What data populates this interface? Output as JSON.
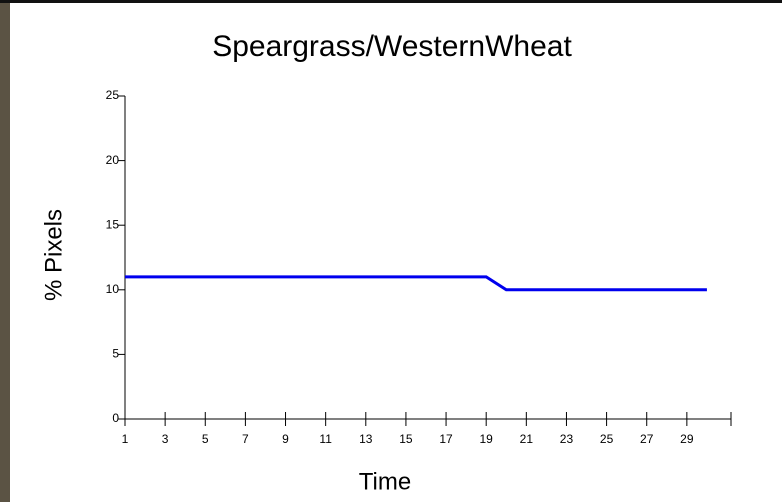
{
  "chart_data": {
    "type": "line",
    "title": "Speargrass/WesternWheat",
    "x_label": "Time",
    "y_label": "% Pixels",
    "x": [
      1,
      2,
      3,
      4,
      5,
      6,
      7,
      8,
      9,
      10,
      11,
      12,
      13,
      14,
      15,
      16,
      17,
      18,
      19,
      20,
      21,
      22,
      23,
      24,
      25,
      26,
      27,
      28,
      29,
      30
    ],
    "series": [
      {
        "name": "Speargrass/WesternWheat",
        "color": "#0000ee",
        "values": [
          11,
          11,
          11,
          11,
          11,
          11,
          11,
          11,
          11,
          11,
          11,
          11,
          11,
          11,
          11,
          11,
          11,
          11,
          11,
          10,
          10,
          10,
          10,
          10,
          10,
          10,
          10,
          10,
          10,
          10
        ]
      }
    ],
    "xlim": [
      1,
      31.2
    ],
    "xticks": [
      1,
      3,
      5,
      7,
      9,
      11,
      13,
      15,
      17,
      19,
      21,
      23,
      25,
      27,
      29
    ],
    "ylim": [
      0,
      25
    ],
    "yticks": [
      0,
      5,
      10,
      15,
      20,
      25
    ]
  }
}
